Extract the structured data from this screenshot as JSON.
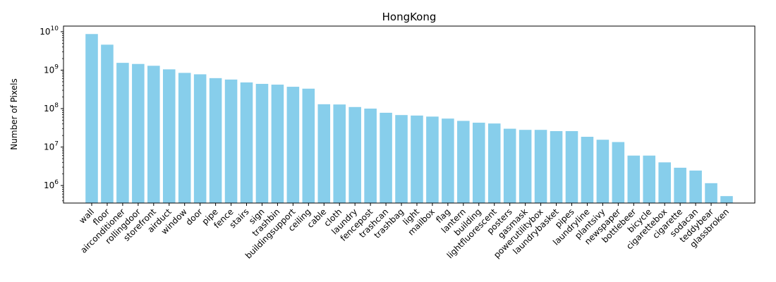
{
  "chart_data": {
    "type": "bar",
    "title": "HongKong",
    "xlabel": "",
    "ylabel": "Number of Pixels",
    "yscale": "log",
    "ylim": [
      350000,
      14000000000
    ],
    "yticks": [
      {
        "value": 1000000,
        "base": "10",
        "exp": "6"
      },
      {
        "value": 10000000,
        "base": "10",
        "exp": "7"
      },
      {
        "value": 100000000,
        "base": "10",
        "exp": "8"
      },
      {
        "value": 1000000000,
        "base": "10",
        "exp": "9"
      },
      {
        "value": 10000000000,
        "base": "10",
        "exp": "10"
      }
    ],
    "bar_color": "#87ceeb",
    "grid": false,
    "legend": "none",
    "categories": [
      "wall",
      "floor",
      "airconditioner",
      "rollingdoor",
      "storefront",
      "airduct",
      "window",
      "door",
      "pipe",
      "fence",
      "stairs",
      "sign",
      "trashbin",
      "buildingsupport",
      "ceiling",
      "cable",
      "cloth",
      "laundry",
      "fencepost",
      "trashcan",
      "trashbag",
      "light",
      "mailbox",
      "flag",
      "lantern",
      "building",
      "lightfluorescent",
      "posters",
      "gasmask",
      "powerutilitybox",
      "laundrybasket",
      "pipes",
      "laundryline",
      "plantsivy",
      "newspaper",
      "bottlebeer",
      "bicycle",
      "cigarettebox",
      "cigarette",
      "sodacan",
      "teddybear",
      "glassbroken"
    ],
    "values": [
      8700000000,
      4600000000,
      1550000000,
      1450000000,
      1300000000,
      1050000000,
      850000000,
      780000000,
      620000000,
      570000000,
      480000000,
      440000000,
      420000000,
      370000000,
      330000000,
      130000000,
      128000000,
      110000000,
      100000000,
      78000000,
      68000000,
      66000000,
      62000000,
      55000000,
      48000000,
      43000000,
      41000000,
      30000000,
      28000000,
      28000000,
      26000000,
      26000000,
      18500000,
      15500000,
      13500000,
      6000000,
      6000000,
      4000000,
      2900000,
      2450000,
      1150000,
      530000
    ]
  }
}
